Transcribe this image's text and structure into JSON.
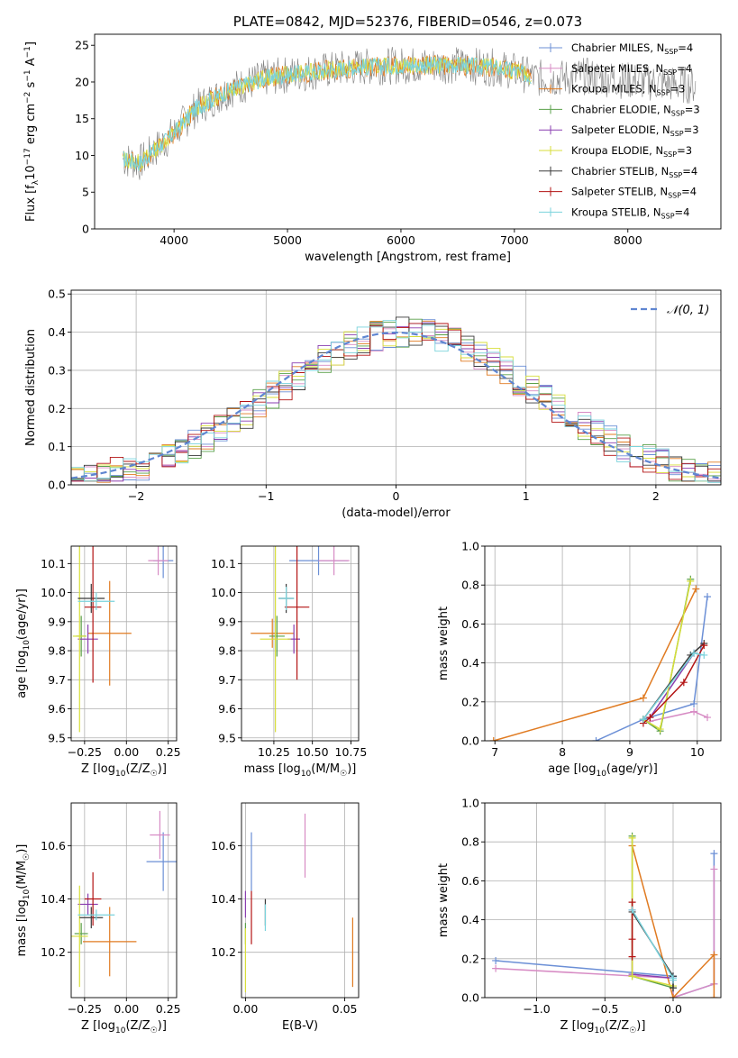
{
  "colors": {
    "Chabrier MILES": "#6b8fd6",
    "Salpeter MILES": "#d78bc4",
    "Kroupa MILES": "#e07b22",
    "Chabrier ELODIE": "#5aa04a",
    "Salpeter ELODIE": "#8a3fb0",
    "Kroupa ELODIE": "#d7de3a",
    "Chabrier STELIB": "#3a3a3a",
    "Salpeter STELIB": "#b31313",
    "Kroupa STELIB": "#7ad3dc"
  },
  "chart_data": [
    {
      "id": "spectrum",
      "type": "line",
      "title": "PLATE=0842, MJD=52376, FIBERID=0546, z=0.073",
      "xlabel": "wavelength [Angstrom, rest frame]",
      "ylabel": "Flux [f",
      "ylabel_parts": [
        "Flux [f",
        "λ",
        "10",
        "−17",
        " erg cm",
        "−2",
        " s",
        "−1",
        " A",
        "−1",
        "]"
      ],
      "xlim": [
        3300,
        8820
      ],
      "ylim": [
        0,
        26.5
      ],
      "xticks": [
        4000,
        5000,
        6000,
        7000,
        8000
      ],
      "yticks": [
        0,
        5,
        10,
        15,
        20,
        25
      ],
      "legend_position": "top-right",
      "legend": [
        {
          "base": "Chabrier MILES, N",
          "sub": "SSP",
          "tail": "=4"
        },
        {
          "base": "Salpeter MILES, N",
          "sub": "SSP",
          "tail": "=4"
        },
        {
          "base": "Kroupa MILES, N",
          "sub": "SSP",
          "tail": "=3"
        },
        {
          "base": "Chabrier ELODIE, N",
          "sub": "SSP",
          "tail": "=3"
        },
        {
          "base": "Salpeter ELODIE, N",
          "sub": "SSP",
          "tail": "=3"
        },
        {
          "base": "Kroupa ELODIE, N",
          "sub": "SSP",
          "tail": "=3"
        },
        {
          "base": "Chabrier STELIB, N",
          "sub": "SSP",
          "tail": "=4"
        },
        {
          "base": "Salpeter STELIB, N",
          "sub": "SSP",
          "tail": "=4"
        },
        {
          "base": "Kroupa STELIB, N",
          "sub": "SSP",
          "tail": "=4"
        }
      ],
      "continuum": {
        "x": [
          3550,
          3700,
          3850,
          4000,
          4200,
          4500,
          4800,
          5000,
          5300,
          5600,
          5900,
          6200,
          6500,
          6800,
          7000,
          7200,
          7400,
          7600,
          8000,
          8300,
          8600
        ],
        "y": [
          9.5,
          9,
          11,
          13,
          16.5,
          19,
          20.5,
          21,
          21.5,
          22,
          22.2,
          22.3,
          22.3,
          22,
          21.5,
          20.5,
          20.5,
          20.8,
          20.2,
          19.8,
          19.5
        ]
      },
      "model_end": 7150,
      "data_end": 8600
    },
    {
      "id": "residuals",
      "type": "bar",
      "xlabel": "(data-model)/error",
      "ylabel": "Normed distribution",
      "xlim": [
        -2.5,
        2.5
      ],
      "ylim": [
        0,
        0.51
      ],
      "xticks": [
        -2,
        -1,
        0,
        1,
        2
      ],
      "xtick_labels": [
        "−2",
        "−1",
        "0",
        "1",
        "2"
      ],
      "yticks": [
        0.0,
        0.1,
        0.2,
        0.3,
        0.4,
        0.5
      ],
      "ytick_labels": [
        "0.0",
        "0.1",
        "0.2",
        "0.3",
        "0.4",
        "0.5"
      ],
      "bins": {
        "start": -2.5,
        "width": 0.1
      },
      "legend_position": "top-right",
      "gaussian_label": "𝒩(0, 1)",
      "gaussian_color": "#5f86d1"
    },
    {
      "id": "age-vs-Z",
      "type": "scatter",
      "xlabel": "Z [log10(Z/Z☉)]",
      "xlabel_parts": [
        "Z [log",
        "10",
        "(Z/Z",
        "☉",
        ")]"
      ],
      "ylabel": "age  [log10(age/yr)]",
      "ylabel_parts": [
        "age  [log",
        "10",
        "(age/yr)]"
      ],
      "xlim": [
        -0.33,
        0.3
      ],
      "ylim": [
        9.49,
        10.16
      ],
      "xticks": [
        -0.25,
        0.0,
        0.25
      ],
      "xtick_labels": [
        "−0.25",
        "0.00",
        "0.25"
      ],
      "yticks": [
        9.5,
        9.6,
        9.7,
        9.8,
        9.9,
        10.0,
        10.1
      ],
      "ytick_labels": [
        "9.5",
        "9.6",
        "9.7",
        "9.8",
        "9.9",
        "10.0",
        "10.1"
      ],
      "points": [
        {
          "model": "Chabrier MILES",
          "x": 0.22,
          "xerr": 0.06,
          "y": 10.11,
          "yerr": 0.06
        },
        {
          "model": "Salpeter MILES",
          "x": 0.19,
          "xerr": 0.06,
          "y": 10.11,
          "yerr": 0.05
        },
        {
          "model": "Kroupa MILES",
          "x": -0.1,
          "xerr": 0.13,
          "y": 9.86,
          "yerr": 0.18
        },
        {
          "model": "Chabrier ELODIE",
          "x": -0.27,
          "xerr": 0.03,
          "y": 9.85,
          "yerr": 0.07
        },
        {
          "model": "Salpeter ELODIE",
          "x": -0.23,
          "xerr": 0.06,
          "y": 9.84,
          "yerr": 0.05
        },
        {
          "model": "Kroupa ELODIE",
          "x": -0.28,
          "xerr": 0.04,
          "y": 9.85,
          "yerr": 0.33
        },
        {
          "model": "Chabrier STELIB",
          "x": -0.21,
          "xerr": 0.08,
          "y": 9.98,
          "yerr": 0.05
        },
        {
          "model": "Salpeter STELIB",
          "x": -0.2,
          "xerr": 0.05,
          "y": 9.95,
          "yerr": 0.26
        },
        {
          "model": "Kroupa STELIB",
          "x": -0.18,
          "xerr": 0.11,
          "y": 9.97,
          "yerr": 0.03
        }
      ]
    },
    {
      "id": "age-vs-mass",
      "type": "scatter",
      "xlabel": "mass [log10(M/M☉)]",
      "xlabel_parts": [
        "mass [log",
        "10",
        "(M/M",
        "☉",
        ")]"
      ],
      "ylabel": "",
      "xlim": [
        10.04,
        10.8
      ],
      "ylim": [
        9.49,
        10.16
      ],
      "xticks": [
        10.25,
        10.5,
        10.75
      ],
      "xtick_labels": [
        "10.25",
        "10.50",
        "10.75"
      ],
      "yticks": [
        9.5,
        9.6,
        9.7,
        9.8,
        9.9,
        10.0,
        10.1
      ],
      "ytick_labels": [
        "9.5",
        "9.6",
        "9.7",
        "9.8",
        "9.9",
        "10.0",
        "10.1"
      ],
      "points": [
        {
          "model": "Chabrier MILES",
          "x": 10.54,
          "xerr": 0.19,
          "y": 10.11,
          "yerr": 0.05
        },
        {
          "model": "Salpeter MILES",
          "x": 10.64,
          "xerr": 0.1,
          "y": 10.11,
          "yerr": 0.05
        },
        {
          "model": "Kroupa MILES",
          "x": 10.24,
          "xerr": 0.14,
          "y": 9.86,
          "yerr": 0.05
        },
        {
          "model": "Chabrier ELODIE",
          "x": 10.27,
          "xerr": 0.05,
          "y": 9.85,
          "yerr": 0.07
        },
        {
          "model": "Salpeter ELODIE",
          "x": 10.38,
          "xerr": 0.04,
          "y": 9.84,
          "yerr": 0.05
        },
        {
          "model": "Kroupa ELODIE",
          "x": 10.26,
          "xerr": 0.1,
          "y": 9.84,
          "yerr": 0.32
        },
        {
          "model": "Chabrier STELIB",
          "x": 10.33,
          "xerr": 0.05,
          "y": 9.98,
          "yerr": 0.05
        },
        {
          "model": "Salpeter STELIB",
          "x": 10.4,
          "xerr": 0.08,
          "y": 9.95,
          "yerr": 0.25
        },
        {
          "model": "Kroupa STELIB",
          "x": 10.33,
          "xerr": 0.05,
          "y": 9.98,
          "yerr": 0.04
        }
      ]
    },
    {
      "id": "weight-vs-age",
      "type": "line",
      "xlabel": "age  [log10(age/yr)]",
      "xlabel_parts": [
        "age  [log",
        "10",
        "(age/yr)]"
      ],
      "ylabel": "mass weight",
      "xlim": [
        6.85,
        10.35
      ],
      "ylim": [
        0,
        1.0
      ],
      "xticks": [
        7,
        8,
        9,
        10
      ],
      "yticks": [
        0.0,
        0.2,
        0.4,
        0.6,
        0.8,
        1.0
      ],
      "ytick_labels": [
        "0.0",
        "0.2",
        "0.4",
        "0.6",
        "0.8",
        "1.0"
      ],
      "series": [
        {
          "model": "Chabrier MILES",
          "x": [
            8.5,
            9.2,
            9.95,
            10.15
          ],
          "y": [
            0.0,
            0.11,
            0.19,
            0.74
          ]
        },
        {
          "model": "Salpeter MILES",
          "x": [
            9.3,
            9.95,
            10.15
          ],
          "y": [
            0.1,
            0.15,
            0.12
          ]
        },
        {
          "model": "Kroupa MILES",
          "x": [
            6.98,
            9.2,
            9.98
          ],
          "y": [
            0.0,
            0.22,
            0.78
          ]
        },
        {
          "model": "Chabrier ELODIE",
          "x": [
            9.2,
            9.45,
            9.9
          ],
          "y": [
            0.11,
            0.05,
            0.83
          ]
        },
        {
          "model": "Salpeter ELODIE",
          "x": [
            9.3,
            9.95
          ],
          "y": [
            0.12,
            0.45
          ]
        },
        {
          "model": "Kroupa ELODIE",
          "x": [
            9.2,
            9.45,
            9.9
          ],
          "y": [
            0.11,
            0.06,
            0.82
          ]
        },
        {
          "model": "Chabrier STELIB",
          "x": [
            9.2,
            9.9,
            10.1
          ],
          "y": [
            0.11,
            0.44,
            0.5
          ]
        },
        {
          "model": "Salpeter STELIB",
          "x": [
            9.2,
            9.3,
            9.8,
            10.1
          ],
          "y": [
            0.09,
            0.12,
            0.3,
            0.49
          ]
        },
        {
          "model": "Kroupa STELIB",
          "x": [
            9.2,
            9.95,
            10.1
          ],
          "y": [
            0.11,
            0.45,
            0.44
          ]
        }
      ]
    },
    {
      "id": "mass-vs-Z",
      "type": "scatter",
      "xlabel": "Z [log10(Z/Z☉)]",
      "xlabel_parts": [
        "Z [log",
        "10",
        "(Z/Z",
        "☉",
        ")]"
      ],
      "ylabel": "mass [log10(M/M☉)]",
      "ylabel_parts": [
        "mass [log",
        "10",
        "(M/M",
        "☉",
        ")]"
      ],
      "xlim": [
        -0.33,
        0.3
      ],
      "ylim": [
        10.03,
        10.76
      ],
      "xticks": [
        -0.25,
        0.0,
        0.25
      ],
      "xtick_labels": [
        "−0.25",
        "0.00",
        "0.25"
      ],
      "yticks": [
        10.2,
        10.4,
        10.6
      ],
      "ytick_labels": [
        "10.2",
        "10.4",
        "10.6"
      ],
      "points": [
        {
          "model": "Chabrier MILES",
          "x": 0.22,
          "xerr": 0.1,
          "y": 10.54,
          "yerr": 0.11
        },
        {
          "model": "Salpeter MILES",
          "x": 0.2,
          "xerr": 0.06,
          "y": 10.64,
          "yerr": 0.09
        },
        {
          "model": "Kroupa MILES",
          "x": -0.1,
          "xerr": 0.16,
          "y": 10.24,
          "yerr": 0.13
        },
        {
          "model": "Chabrier ELODIE",
          "x": -0.27,
          "xerr": 0.04,
          "y": 10.27,
          "yerr": 0.04
        },
        {
          "model": "Salpeter ELODIE",
          "x": -0.23,
          "xerr": 0.06,
          "y": 10.38,
          "yerr": 0.04
        },
        {
          "model": "Kroupa ELODIE",
          "x": -0.28,
          "xerr": 0.05,
          "y": 10.26,
          "yerr": 0.19
        },
        {
          "model": "Chabrier STELIB",
          "x": -0.21,
          "xerr": 0.07,
          "y": 10.33,
          "yerr": 0.04
        },
        {
          "model": "Salpeter STELIB",
          "x": -0.2,
          "xerr": 0.05,
          "y": 10.4,
          "yerr": 0.1
        },
        {
          "model": "Kroupa STELIB",
          "x": -0.18,
          "xerr": 0.11,
          "y": 10.34,
          "yerr": 0.02
        }
      ]
    },
    {
      "id": "mass-vs-ebv",
      "type": "scatter",
      "xlabel": "E(B-V)",
      "ylabel": "",
      "xlim": [
        -0.002,
        0.057
      ],
      "ylim": [
        10.03,
        10.76
      ],
      "xticks": [
        0.0,
        0.05
      ],
      "xtick_labels": [
        "0.00",
        "0.05"
      ],
      "yticks": [
        10.2,
        10.4,
        10.6
      ],
      "ytick_labels": [
        "10.2",
        "10.4",
        "10.6"
      ],
      "points": [
        {
          "model": "Chabrier MILES",
          "x": 0.003,
          "xerr": 0.0,
          "y": 10.54,
          "yerr": 0.11
        },
        {
          "model": "Salpeter MILES",
          "x": 0.03,
          "xerr": 0.0,
          "y": 10.6,
          "yerr": 0.12
        },
        {
          "model": "Kroupa MILES",
          "x": 0.054,
          "xerr": 0.0,
          "y": 10.2,
          "yerr": 0.13
        },
        {
          "model": "Chabrier ELODIE",
          "x": 0.0,
          "xerr": 0.0,
          "y": 10.27,
          "yerr": 0.04
        },
        {
          "model": "Salpeter ELODIE",
          "x": 0.0,
          "xerr": 0.0,
          "y": 10.38,
          "yerr": 0.05
        },
        {
          "model": "Kroupa ELODIE",
          "x": 0.0,
          "xerr": 0.0,
          "y": 10.17,
          "yerr": 0.12
        },
        {
          "model": "Chabrier STELIB",
          "x": 0.01,
          "xerr": 0.0,
          "y": 10.35,
          "yerr": 0.05
        },
        {
          "model": "Salpeter STELIB",
          "x": 0.003,
          "xerr": 0.0,
          "y": 10.33,
          "yerr": 0.1
        },
        {
          "model": "Kroupa STELIB",
          "x": 0.01,
          "xerr": 0.0,
          "y": 10.33,
          "yerr": 0.05
        }
      ]
    },
    {
      "id": "weight-vs-Z",
      "type": "line",
      "xlabel": "Z [log10(Z/Z☉)]",
      "xlabel_parts": [
        "Z [log",
        "10",
        "(Z/Z",
        "☉",
        ")]"
      ],
      "ylabel": "mass weight",
      "xlim": [
        -1.38,
        0.35
      ],
      "ylim": [
        0,
        1.0
      ],
      "xticks": [
        -1.0,
        -0.5,
        0.0
      ],
      "xtick_labels": [
        "−1.0",
        "−0.5",
        "0.0"
      ],
      "yticks": [
        0.0,
        0.2,
        0.4,
        0.6,
        0.8,
        1.0
      ],
      "ytick_labels": [
        "0.0",
        "0.2",
        "0.4",
        "0.6",
        "0.8",
        "1.0"
      ],
      "series": [
        {
          "model": "Chabrier MILES",
          "x": [
            -1.3,
            0.0,
            0.0,
            0.3,
            0.3
          ],
          "y": [
            0.19,
            0.11,
            0.0,
            0.07,
            0.74
          ]
        },
        {
          "model": "Salpeter MILES",
          "x": [
            -1.3,
            0.0,
            0.0,
            0.3,
            0.3
          ],
          "y": [
            0.15,
            0.1,
            0.0,
            0.07,
            0.66
          ]
        },
        {
          "model": "Kroupa MILES",
          "x": [
            -0.3,
            0.0,
            0.3,
            0.3
          ],
          "y": [
            0.78,
            0.0,
            0.22,
            0.0
          ]
        },
        {
          "model": "Chabrier ELODIE",
          "x": [
            -0.3,
            -0.3,
            0.0
          ],
          "y": [
            0.83,
            0.11,
            0.05
          ]
        },
        {
          "model": "Salpeter ELODIE",
          "x": [
            -0.3,
            -0.3,
            0.0
          ],
          "y": [
            0.45,
            0.12,
            0.1
          ]
        },
        {
          "model": "Kroupa ELODIE",
          "x": [
            -0.3,
            -0.3,
            0.0
          ],
          "y": [
            0.82,
            0.11,
            0.06
          ]
        },
        {
          "model": "Chabrier STELIB",
          "x": [
            -0.3,
            0.0,
            0.0
          ],
          "y": [
            0.44,
            0.11,
            0.05
          ]
        },
        {
          "model": "Salpeter STELIB",
          "x": [
            -0.3,
            -0.3,
            -0.3
          ],
          "y": [
            0.49,
            0.3,
            0.21
          ]
        },
        {
          "model": "Kroupa STELIB",
          "x": [
            -0.3,
            0.0,
            0.0
          ],
          "y": [
            0.45,
            0.1,
            0.09
          ]
        }
      ]
    }
  ]
}
